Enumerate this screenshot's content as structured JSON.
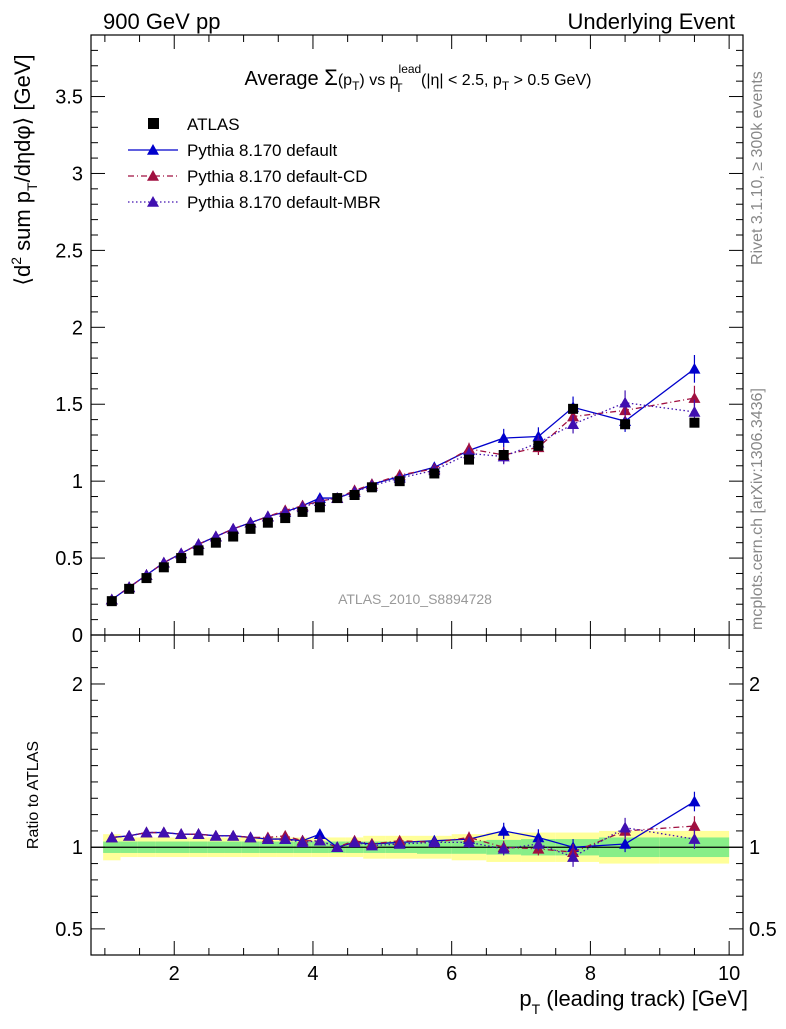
{
  "header": {
    "left": "900 GeV pp",
    "right": "Underlying Event"
  },
  "side_labels": {
    "rivet": "Rivet 3.1.10, ≥ 300k events",
    "mcplots": "mcplots.cern.ch [arXiv:1306.3436]"
  },
  "plot_title": {
    "pre": "Average ",
    "sigma": "Σ",
    "arg": "(p",
    "arg_sub": "T",
    "arg_close": ")",
    "vs": " vs p",
    "vs_sup": "lead",
    "vs_sub": "T",
    "cuts1": " (|η| < 2.5, p",
    "cuts_sub": "T",
    "cuts2": " > 0.5 GeV)"
  },
  "watermark": "ATLAS_2010_S8894728",
  "ylabel_main": {
    "p1": "⟨d",
    "sup": "2",
    "p2": " sum p",
    "sub": "T",
    "p3": "/dηdφ⟩ [GeV]"
  },
  "ylabel_ratio": "Ratio to ATLAS",
  "xlabel": {
    "p1": "p",
    "sub": "T",
    "p2": " (leading track) [GeV]"
  },
  "colors": {
    "atlas": "#000000",
    "default": "#0000cc",
    "default_cd": "#a01040",
    "default_mbr": "#4010b0",
    "band_outer": "#ffff99",
    "band_inner": "#88ee88"
  },
  "chart_data": {
    "type": "scatter",
    "x_range": [
      0.8,
      10.2
    ],
    "main_ylim": [
      0,
      3.9
    ],
    "ratio_ylim": [
      0.34,
      2.3
    ],
    "x_ticks": [
      "2",
      "4",
      "6",
      "8",
      "10"
    ],
    "main_y_ticks": [
      "0",
      "0.5",
      "1",
      "1.5",
      "2",
      "2.5",
      "3",
      "3.5"
    ],
    "ratio_y_ticks": [
      "0.5",
      "1",
      "2"
    ],
    "ratio_y_ticks_right": [
      "0.5",
      "1",
      "2"
    ],
    "legend": [
      {
        "name": "ATLAS",
        "style": "square"
      },
      {
        "name": "Pythia 8.170 default",
        "style": "solid"
      },
      {
        "name": "Pythia 8.170 default-CD",
        "style": "dashdot"
      },
      {
        "name": "Pythia 8.170 default-MBR",
        "style": "dotted"
      }
    ],
    "x": [
      1.1,
      1.35,
      1.6,
      1.85,
      2.1,
      2.35,
      2.6,
      2.85,
      3.1,
      3.35,
      3.6,
      3.85,
      4.1,
      4.35,
      4.6,
      4.85,
      5.25,
      5.75,
      6.25,
      6.75,
      7.25,
      7.75,
      8.5,
      9.5
    ],
    "atlas": [
      0.22,
      0.3,
      0.37,
      0.44,
      0.5,
      0.55,
      0.6,
      0.64,
      0.69,
      0.73,
      0.76,
      0.8,
      0.83,
      0.89,
      0.91,
      0.96,
      1.0,
      1.05,
      1.14,
      1.17,
      1.23,
      1.47,
      1.37,
      1.38
    ],
    "atlas_band_inner": [
      0.035,
      0.035,
      0.035,
      0.035,
      0.035,
      0.035,
      0.035,
      0.035,
      0.035,
      0.035,
      0.035,
      0.035,
      0.035,
      0.035,
      0.035,
      0.035,
      0.035,
      0.04,
      0.04,
      0.045,
      0.05,
      0.05,
      0.06,
      0.06
    ],
    "atlas_band_outer": [
      0.08,
      0.06,
      0.06,
      0.06,
      0.06,
      0.06,
      0.06,
      0.06,
      0.06,
      0.06,
      0.06,
      0.06,
      0.06,
      0.06,
      0.06,
      0.07,
      0.07,
      0.07,
      0.08,
      0.09,
      0.09,
      0.09,
      0.1,
      0.1
    ],
    "series": [
      {
        "name": "Pythia 8.170 default",
        "style": "solid",
        "y": [
          0.23,
          0.31,
          0.39,
          0.47,
          0.53,
          0.59,
          0.64,
          0.69,
          0.73,
          0.77,
          0.8,
          0.84,
          0.89,
          0.89,
          0.93,
          0.98,
          1.03,
          1.09,
          1.2,
          1.28,
          1.29,
          1.48,
          1.39,
          1.73
        ],
        "err": [
          0.01,
          0.01,
          0.01,
          0.01,
          0.01,
          0.01,
          0.01,
          0.01,
          0.01,
          0.01,
          0.01,
          0.015,
          0.015,
          0.015,
          0.015,
          0.02,
          0.02,
          0.03,
          0.04,
          0.06,
          0.06,
          0.07,
          0.07,
          0.09
        ],
        "ratio": [
          1.06,
          1.07,
          1.09,
          1.09,
          1.08,
          1.08,
          1.07,
          1.07,
          1.06,
          1.05,
          1.05,
          1.04,
          1.08,
          1.0,
          1.03,
          1.02,
          1.03,
          1.04,
          1.05,
          1.1,
          1.06,
          1.0,
          1.02,
          1.28
        ],
        "ratio_err": [
          0.01,
          0.01,
          0.01,
          0.01,
          0.01,
          0.01,
          0.01,
          0.01,
          0.01,
          0.01,
          0.01,
          0.015,
          0.015,
          0.015,
          0.015,
          0.02,
          0.02,
          0.03,
          0.035,
          0.05,
          0.05,
          0.05,
          0.05,
          0.06
        ]
      },
      {
        "name": "Pythia 8.170 default-CD",
        "style": "dashdot",
        "y": [
          0.23,
          0.31,
          0.39,
          0.47,
          0.53,
          0.59,
          0.64,
          0.69,
          0.73,
          0.77,
          0.81,
          0.84,
          0.87,
          0.89,
          0.94,
          0.98,
          1.04,
          1.08,
          1.21,
          1.17,
          1.22,
          1.42,
          1.46,
          1.54
        ],
        "err": [
          0.01,
          0.01,
          0.01,
          0.01,
          0.01,
          0.01,
          0.01,
          0.01,
          0.01,
          0.01,
          0.01,
          0.015,
          0.015,
          0.015,
          0.015,
          0.02,
          0.02,
          0.03,
          0.04,
          0.05,
          0.05,
          0.06,
          0.07,
          0.08
        ],
        "ratio": [
          1.06,
          1.07,
          1.09,
          1.09,
          1.08,
          1.08,
          1.07,
          1.07,
          1.06,
          1.06,
          1.07,
          1.04,
          1.04,
          1.0,
          1.04,
          1.02,
          1.04,
          1.03,
          1.06,
          1.0,
          0.99,
          0.97,
          1.1,
          1.13
        ],
        "ratio_err": [
          0.01,
          0.01,
          0.01,
          0.01,
          0.01,
          0.01,
          0.01,
          0.01,
          0.01,
          0.01,
          0.01,
          0.015,
          0.015,
          0.015,
          0.015,
          0.02,
          0.02,
          0.03,
          0.035,
          0.04,
          0.04,
          0.05,
          0.05,
          0.06
        ]
      },
      {
        "name": "Pythia 8.170 default-MBR",
        "style": "dotted",
        "y": [
          0.23,
          0.31,
          0.39,
          0.47,
          0.53,
          0.59,
          0.64,
          0.69,
          0.73,
          0.77,
          0.8,
          0.83,
          0.87,
          0.89,
          0.93,
          0.97,
          1.02,
          1.07,
          1.18,
          1.16,
          1.25,
          1.37,
          1.51,
          1.45
        ],
        "err": [
          0.01,
          0.01,
          0.01,
          0.01,
          0.01,
          0.01,
          0.01,
          0.01,
          0.01,
          0.01,
          0.01,
          0.015,
          0.015,
          0.015,
          0.015,
          0.02,
          0.02,
          0.03,
          0.04,
          0.05,
          0.05,
          0.06,
          0.08,
          0.08
        ],
        "ratio": [
          1.06,
          1.07,
          1.09,
          1.09,
          1.08,
          1.08,
          1.07,
          1.07,
          1.06,
          1.05,
          1.05,
          1.03,
          1.04,
          1.0,
          1.03,
          1.01,
          1.02,
          1.03,
          1.03,
          0.99,
          1.02,
          0.94,
          1.12,
          1.05
        ],
        "ratio_err": [
          0.01,
          0.01,
          0.01,
          0.01,
          0.01,
          0.01,
          0.01,
          0.01,
          0.01,
          0.01,
          0.01,
          0.015,
          0.015,
          0.015,
          0.015,
          0.02,
          0.02,
          0.03,
          0.035,
          0.04,
          0.04,
          0.06,
          0.06,
          0.06
        ]
      }
    ]
  }
}
